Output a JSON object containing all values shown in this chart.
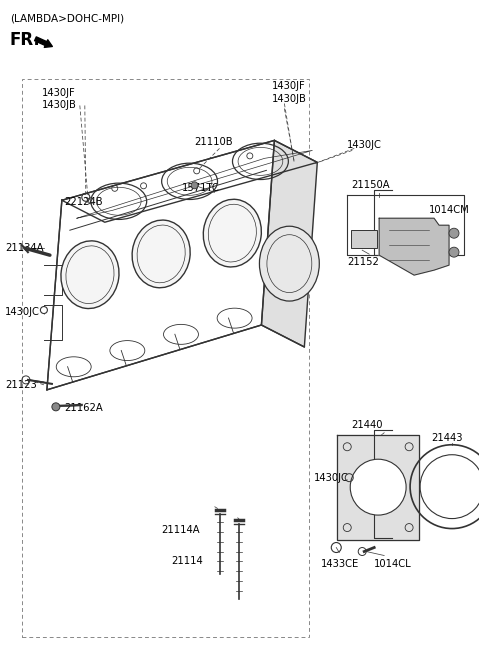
{
  "title": "(LAMBDA>DOHC-MPI)",
  "fr_label": "FR.",
  "bg_color": "#ffffff",
  "text_color": "#000000",
  "line_color": "#333333",
  "gray1": "#aaaaaa",
  "gray2": "#cccccc",
  "gray3": "#e8e8e8",
  "labels": {
    "tl1": "1430JF",
    "tl2": "1430JB",
    "tc1": "1430JF",
    "tc2": "1430JB",
    "tr": "1430JC",
    "ct": "21110B",
    "cm": "1571TC",
    "lu": "21134A",
    "lm": "1430JC",
    "ll": "21123",
    "ll2": "21162A",
    "nl": "22124B",
    "ru": "21150A",
    "rm1": "21152",
    "rm2": "1014CM",
    "rl1": "21440",
    "rl2": "21443",
    "rl3": "1430JC",
    "rl4": "1433CE",
    "rl5": "1014CL",
    "bm1": "21114A",
    "bm2": "21114"
  }
}
